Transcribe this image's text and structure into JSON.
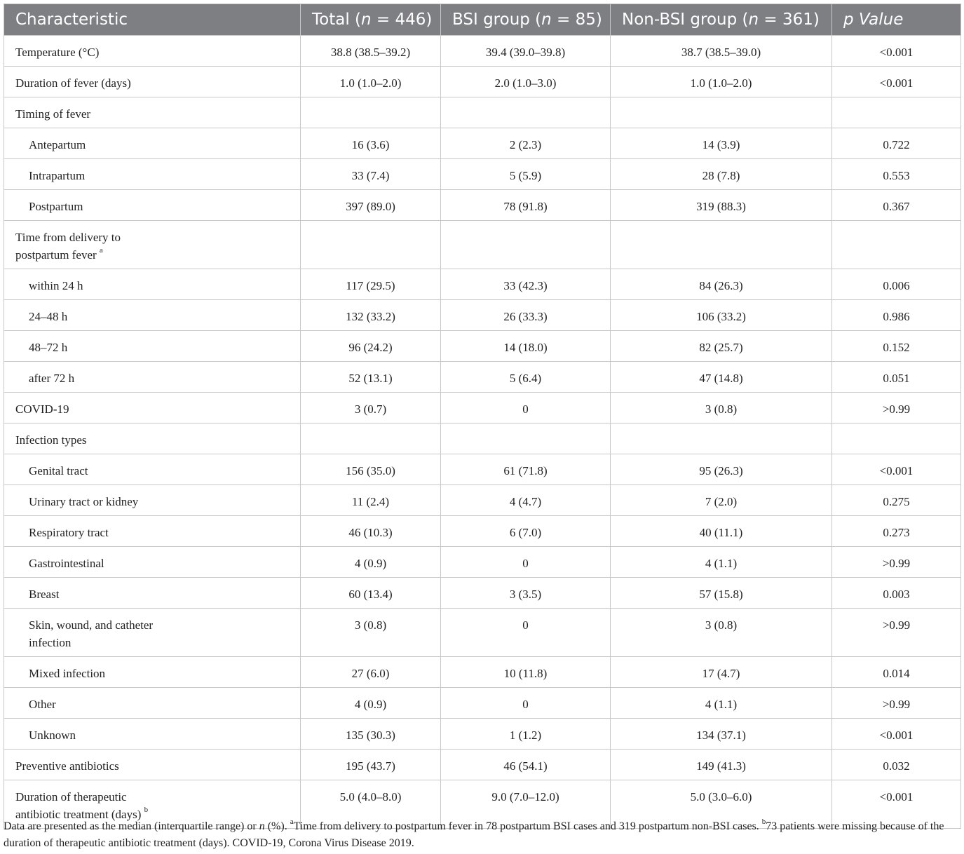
{
  "header": {
    "characteristic": "Characteristic",
    "total_prefix": "Total (",
    "total_n": "n",
    "total_suffix": " = 446)",
    "bsi_prefix": "BSI group (",
    "bsi_n": "n",
    "bsi_suffix": " = 85)",
    "nonbsi_prefix": "Non-BSI group (",
    "nonbsi_n": "n",
    "nonbsi_suffix": " = 361)",
    "p_value": "p Value"
  },
  "rows": [
    {
      "label": "Temperature (°C)",
      "total": "38.8 (38.5–39.2)",
      "bsi": "39.4 (39.0–39.8)",
      "nonbsi": "38.7 (38.5–39.0)",
      "p": "<0.001"
    },
    {
      "label": "Duration of fever (days)",
      "total": "1.0 (1.0–2.0)",
      "bsi": "2.0 (1.0–3.0)",
      "nonbsi": "1.0 (1.0–2.0)",
      "p": "<0.001"
    },
    {
      "label": "Timing of fever",
      "total": "",
      "bsi": "",
      "nonbsi": "",
      "p": ""
    },
    {
      "label": "Antepartum",
      "total": "16 (3.6)",
      "bsi": "2 (2.3)",
      "nonbsi": "14 (3.9)",
      "p": "0.722"
    },
    {
      "label": "Intrapartum",
      "total": "33 (7.4)",
      "bsi": "5 (5.9)",
      "nonbsi": "28 (7.8)",
      "p": "0.553"
    },
    {
      "label": "Postpartum",
      "total": "397 (89.0)",
      "bsi": "78 (91.8)",
      "nonbsi": "319 (88.3)",
      "p": "0.367"
    },
    {
      "label_line1": "Time from delivery to",
      "label_line2": "postpartum fever",
      "sup": "a",
      "total": "",
      "bsi": "",
      "nonbsi": "",
      "p": ""
    },
    {
      "label": "within 24 h",
      "total": "117 (29.5)",
      "bsi": "33 (42.3)",
      "nonbsi": "84 (26.3)",
      "p": "0.006"
    },
    {
      "label": "24–48 h",
      "total": "132 (33.2)",
      "bsi": "26 (33.3)",
      "nonbsi": "106 (33.2)",
      "p": "0.986"
    },
    {
      "label": "48–72 h",
      "total": "96 (24.2)",
      "bsi": "14 (18.0)",
      "nonbsi": "82 (25.7)",
      "p": "0.152"
    },
    {
      "label": "after 72 h",
      "total": "52 (13.1)",
      "bsi": "5 (6.4)",
      "nonbsi": "47 (14.8)",
      "p": "0.051"
    },
    {
      "label": "COVID-19",
      "total": "3 (0.7)",
      "bsi": "0",
      "nonbsi": "3 (0.8)",
      "p": ">0.99"
    },
    {
      "label": "Infection types",
      "total": "",
      "bsi": "",
      "nonbsi": "",
      "p": ""
    },
    {
      "label": "Genital tract",
      "total": "156 (35.0)",
      "bsi": "61 (71.8)",
      "nonbsi": "95 (26.3)",
      "p": "<0.001"
    },
    {
      "label": "Urinary tract or kidney",
      "total": "11 (2.4)",
      "bsi": "4 (4.7)",
      "nonbsi": "7 (2.0)",
      "p": "0.275"
    },
    {
      "label": "Respiratory tract",
      "total": "46 (10.3)",
      "bsi": "6 (7.0)",
      "nonbsi": "40 (11.1)",
      "p": "0.273"
    },
    {
      "label": "Gastrointestinal",
      "total": "4 (0.9)",
      "bsi": "0",
      "nonbsi": "4 (1.1)",
      "p": ">0.99"
    },
    {
      "label": "Breast",
      "total": "60 (13.4)",
      "bsi": "3 (3.5)",
      "nonbsi": "57 (15.8)",
      "p": "0.003"
    },
    {
      "label_line1": "Skin, wound, and catheter",
      "label_line2": "infection",
      "sup": "",
      "total": "3 (0.8)",
      "bsi": "0",
      "nonbsi": "3 (0.8)",
      "p": ">0.99"
    },
    {
      "label": "Mixed infection",
      "total": "27 (6.0)",
      "bsi": "10 (11.8)",
      "nonbsi": "17 (4.7)",
      "p": "0.014"
    },
    {
      "label": "Other",
      "total": "4 (0.9)",
      "bsi": "0",
      "nonbsi": "4 (1.1)",
      "p": ">0.99"
    },
    {
      "label": "Unknown",
      "total": "135 (30.3)",
      "bsi": "1 (1.2)",
      "nonbsi": "134 (37.1)",
      "p": "<0.001"
    },
    {
      "label": "Preventive antibiotics",
      "total": "195 (43.7)",
      "bsi": "46 (54.1)",
      "nonbsi": "149 (41.3)",
      "p": "0.032"
    },
    {
      "label_line1": "Duration of therapeutic",
      "label_line2": "antibiotic treatment (days)",
      "sup": "b",
      "total": "5.0 (4.0–8.0)",
      "bsi": "9.0 (7.0–12.0)",
      "nonbsi": "5.0 (3.0–6.0)",
      "p": "<0.001"
    }
  ],
  "footnote": {
    "intro": "Data are presented as the median (interquartile range) or ",
    "n": "n",
    "pct": " (%). ",
    "a_mark": "a",
    "a_text": "Time from delivery to postpartum fever in 78 postpartum BSI cases and 319 postpartum non-BSI cases. ",
    "b_mark": "b",
    "b_text": "73 patients were missing because of the duration of therapeutic antibiotic treatment (days). COVID-19, Corona Virus Disease 2019."
  }
}
